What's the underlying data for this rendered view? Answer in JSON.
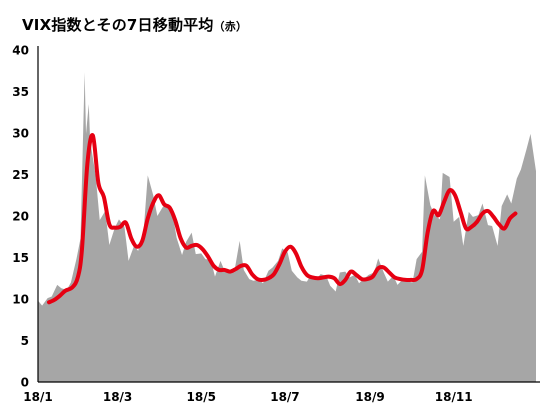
{
  "title": {
    "main": "VIX指数とその7日移動平均",
    "sub": "（赤）"
  },
  "colors": {
    "area": "#a6a6a6",
    "moving_average": "#e60012",
    "axis": "#000000"
  },
  "chart_data": {
    "type": "area",
    "ylim": [
      0,
      40
    ],
    "y_ticks": [
      0,
      5,
      10,
      15,
      20,
      25,
      30,
      35,
      40
    ],
    "x_range": [
      "2018-01-02",
      "2018-12-31"
    ],
    "x_ticks": [
      {
        "date": "2018-01-02",
        "label": "18/1"
      },
      {
        "date": "2018-03-01",
        "label": "18/3"
      },
      {
        "date": "2018-05-01",
        "label": "18/5"
      },
      {
        "date": "2018-07-01",
        "label": "18/7"
      },
      {
        "date": "2018-09-01",
        "label": "18/9"
      },
      {
        "date": "2018-11-01",
        "label": "18/11"
      }
    ],
    "grid": false,
    "series": [
      {
        "style": "gray area",
        "points": [
          [
            "2018-01-02",
            9.8
          ],
          [
            "2018-01-05",
            9.2
          ],
          [
            "2018-01-09",
            10.1
          ],
          [
            "2018-01-12",
            10.3
          ],
          [
            "2018-01-16",
            11.7
          ],
          [
            "2018-01-19",
            11.3
          ],
          [
            "2018-01-23",
            11.1
          ],
          [
            "2018-01-26",
            12.0
          ],
          [
            "2018-01-30",
            14.8
          ],
          [
            "2018-02-02",
            17.3
          ],
          [
            "2018-02-05",
            37.3
          ],
          [
            "2018-02-06",
            29.9
          ],
          [
            "2018-02-08",
            33.5
          ],
          [
            "2018-02-09",
            29.1
          ],
          [
            "2018-02-13",
            24.9
          ],
          [
            "2018-02-16",
            19.5
          ],
          [
            "2018-02-20",
            20.6
          ],
          [
            "2018-02-23",
            16.5
          ],
          [
            "2018-02-27",
            18.6
          ],
          [
            "2018-03-02",
            19.6
          ],
          [
            "2018-03-06",
            18.7
          ],
          [
            "2018-03-09",
            14.6
          ],
          [
            "2018-03-13",
            16.4
          ],
          [
            "2018-03-16",
            15.8
          ],
          [
            "2018-03-20",
            18.2
          ],
          [
            "2018-03-23",
            24.9
          ],
          [
            "2018-03-27",
            22.5
          ],
          [
            "2018-03-30",
            20.0
          ],
          [
            "2018-04-03",
            21.1
          ],
          [
            "2018-04-06",
            21.5
          ],
          [
            "2018-04-10",
            20.5
          ],
          [
            "2018-04-13",
            17.4
          ],
          [
            "2018-04-17",
            15.3
          ],
          [
            "2018-04-20",
            16.9
          ],
          [
            "2018-04-24",
            18.0
          ],
          [
            "2018-04-27",
            15.4
          ],
          [
            "2018-05-01",
            15.5
          ],
          [
            "2018-05-04",
            14.8
          ],
          [
            "2018-05-08",
            14.7
          ],
          [
            "2018-05-11",
            12.7
          ],
          [
            "2018-05-15",
            14.6
          ],
          [
            "2018-05-18",
            13.4
          ],
          [
            "2018-05-22",
            13.2
          ],
          [
            "2018-05-25",
            13.2
          ],
          [
            "2018-05-29",
            17.0
          ],
          [
            "2018-06-01",
            13.5
          ],
          [
            "2018-06-05",
            12.4
          ],
          [
            "2018-06-08",
            12.2
          ],
          [
            "2018-06-12",
            12.3
          ],
          [
            "2018-06-15",
            11.9
          ],
          [
            "2018-06-19",
            13.4
          ],
          [
            "2018-06-22",
            13.8
          ],
          [
            "2018-06-26",
            14.6
          ],
          [
            "2018-06-29",
            16.1
          ],
          [
            "2018-07-03",
            15.6
          ],
          [
            "2018-07-06",
            13.4
          ],
          [
            "2018-07-10",
            12.6
          ],
          [
            "2018-07-13",
            12.2
          ],
          [
            "2018-07-17",
            12.1
          ],
          [
            "2018-07-20",
            12.9
          ],
          [
            "2018-07-24",
            12.4
          ],
          [
            "2018-07-27",
            13.0
          ],
          [
            "2018-07-31",
            12.8
          ],
          [
            "2018-08-03",
            11.6
          ],
          [
            "2018-08-07",
            10.9
          ],
          [
            "2018-08-10",
            13.2
          ],
          [
            "2018-08-14",
            13.3
          ],
          [
            "2018-08-17",
            12.6
          ],
          [
            "2018-08-21",
            12.9
          ],
          [
            "2018-08-24",
            11.9
          ],
          [
            "2018-08-28",
            12.5
          ],
          [
            "2018-08-31",
            12.9
          ],
          [
            "2018-09-04",
            13.2
          ],
          [
            "2018-09-07",
            14.9
          ],
          [
            "2018-09-11",
            13.2
          ],
          [
            "2018-09-14",
            12.1
          ],
          [
            "2018-09-18",
            12.8
          ],
          [
            "2018-09-21",
            11.7
          ],
          [
            "2018-09-25",
            12.4
          ],
          [
            "2018-09-28",
            12.1
          ],
          [
            "2018-10-02",
            12.0
          ],
          [
            "2018-10-05",
            14.8
          ],
          [
            "2018-10-09",
            15.7
          ],
          [
            "2018-10-11",
            24.9
          ],
          [
            "2018-10-15",
            21.3
          ],
          [
            "2018-10-18",
            20.1
          ],
          [
            "2018-10-22",
            19.6
          ],
          [
            "2018-10-24",
            25.2
          ],
          [
            "2018-10-29",
            24.7
          ],
          [
            "2018-11-01",
            19.3
          ],
          [
            "2018-11-05",
            19.9
          ],
          [
            "2018-11-08",
            16.4
          ],
          [
            "2018-11-12",
            20.5
          ],
          [
            "2018-11-15",
            19.9
          ],
          [
            "2018-11-19",
            20.1
          ],
          [
            "2018-11-22",
            21.5
          ],
          [
            "2018-11-26",
            18.9
          ],
          [
            "2018-11-29",
            18.8
          ],
          [
            "2018-12-03",
            16.4
          ],
          [
            "2018-12-06",
            21.2
          ],
          [
            "2018-12-10",
            22.6
          ],
          [
            "2018-12-13",
            21.5
          ],
          [
            "2018-12-17",
            24.5
          ],
          [
            "2018-12-20",
            25.6
          ],
          [
            "2018-12-24",
            28.0
          ],
          [
            "2018-12-27",
            29.9
          ],
          [
            "2018-12-31",
            25.4
          ]
        ]
      },
      {
        "style": "red line",
        "points": [
          [
            "2018-01-10",
            9.6
          ],
          [
            "2018-01-14",
            9.9
          ],
          [
            "2018-01-18",
            10.4
          ],
          [
            "2018-01-22",
            11.0
          ],
          [
            "2018-01-27",
            11.4
          ],
          [
            "2018-01-31",
            12.6
          ],
          [
            "2018-02-03",
            15.9
          ],
          [
            "2018-02-07",
            26.3
          ],
          [
            "2018-02-11",
            29.7
          ],
          [
            "2018-02-15",
            24.0
          ],
          [
            "2018-02-19",
            22.3
          ],
          [
            "2018-02-23",
            19.0
          ],
          [
            "2018-02-27",
            18.6
          ],
          [
            "2018-03-03",
            18.7
          ],
          [
            "2018-03-07",
            19.2
          ],
          [
            "2018-03-11",
            17.3
          ],
          [
            "2018-03-15",
            16.3
          ],
          [
            "2018-03-19",
            17.0
          ],
          [
            "2018-03-23",
            19.7
          ],
          [
            "2018-03-27",
            21.6
          ],
          [
            "2018-03-31",
            22.5
          ],
          [
            "2018-04-04",
            21.4
          ],
          [
            "2018-04-08",
            21.0
          ],
          [
            "2018-04-12",
            19.5
          ],
          [
            "2018-04-16",
            17.3
          ],
          [
            "2018-04-20",
            16.2
          ],
          [
            "2018-04-24",
            16.4
          ],
          [
            "2018-04-28",
            16.5
          ],
          [
            "2018-05-02",
            16.0
          ],
          [
            "2018-05-06",
            15.1
          ],
          [
            "2018-05-10",
            14.0
          ],
          [
            "2018-05-14",
            13.5
          ],
          [
            "2018-05-18",
            13.5
          ],
          [
            "2018-05-22",
            13.3
          ],
          [
            "2018-05-26",
            13.6
          ],
          [
            "2018-05-30",
            14.0
          ],
          [
            "2018-06-03",
            14.0
          ],
          [
            "2018-06-07",
            13.0
          ],
          [
            "2018-06-11",
            12.4
          ],
          [
            "2018-06-15",
            12.3
          ],
          [
            "2018-06-19",
            12.5
          ],
          [
            "2018-06-23",
            13.0
          ],
          [
            "2018-06-27",
            14.2
          ],
          [
            "2018-07-01",
            15.7
          ],
          [
            "2018-07-05",
            16.3
          ],
          [
            "2018-07-09",
            15.5
          ],
          [
            "2018-07-13",
            13.9
          ],
          [
            "2018-07-17",
            12.9
          ],
          [
            "2018-07-21",
            12.6
          ],
          [
            "2018-07-25",
            12.5
          ],
          [
            "2018-07-29",
            12.6
          ],
          [
            "2018-08-02",
            12.7
          ],
          [
            "2018-08-06",
            12.5
          ],
          [
            "2018-08-10",
            11.8
          ],
          [
            "2018-08-14",
            12.3
          ],
          [
            "2018-08-18",
            13.3
          ],
          [
            "2018-08-22",
            12.9
          ],
          [
            "2018-08-26",
            12.4
          ],
          [
            "2018-08-30",
            12.4
          ],
          [
            "2018-09-03",
            12.7
          ],
          [
            "2018-09-07",
            13.7
          ],
          [
            "2018-09-11",
            13.8
          ],
          [
            "2018-09-15",
            13.2
          ],
          [
            "2018-09-19",
            12.6
          ],
          [
            "2018-09-23",
            12.4
          ],
          [
            "2018-09-27",
            12.3
          ],
          [
            "2018-10-01",
            12.3
          ],
          [
            "2018-10-05",
            12.4
          ],
          [
            "2018-10-09",
            13.5
          ],
          [
            "2018-10-13",
            18.0
          ],
          [
            "2018-10-17",
            20.6
          ],
          [
            "2018-10-21",
            20.1
          ],
          [
            "2018-10-25",
            21.7
          ],
          [
            "2018-10-29",
            23.1
          ],
          [
            "2018-11-02",
            22.5
          ],
          [
            "2018-11-06",
            20.5
          ],
          [
            "2018-11-10",
            18.5
          ],
          [
            "2018-11-14",
            18.7
          ],
          [
            "2018-11-18",
            19.3
          ],
          [
            "2018-11-22",
            20.3
          ],
          [
            "2018-11-26",
            20.6
          ],
          [
            "2018-11-30",
            19.9
          ],
          [
            "2018-12-04",
            19.0
          ],
          [
            "2018-12-08",
            18.5
          ],
          [
            "2018-12-12",
            19.7
          ],
          [
            "2018-12-16",
            20.3
          ]
        ]
      }
    ]
  }
}
